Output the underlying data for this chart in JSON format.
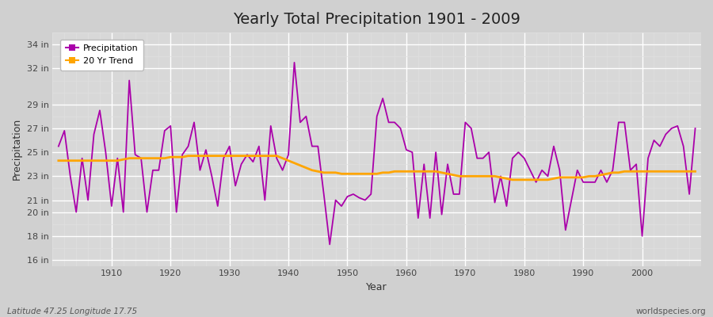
{
  "title": "Yearly Total Precipitation 1901 - 2009",
  "xlabel": "Year",
  "ylabel": "Precipitation",
  "subtitle_left": "Latitude 47.25 Longitude 17.75",
  "subtitle_right": "worldspecies.org",
  "years": [
    1901,
    1902,
    1903,
    1904,
    1905,
    1906,
    1907,
    1908,
    1909,
    1910,
    1911,
    1912,
    1913,
    1914,
    1915,
    1916,
    1917,
    1918,
    1919,
    1920,
    1921,
    1922,
    1923,
    1924,
    1925,
    1926,
    1927,
    1928,
    1929,
    1930,
    1931,
    1932,
    1933,
    1934,
    1935,
    1936,
    1937,
    1938,
    1939,
    1940,
    1941,
    1942,
    1943,
    1944,
    1945,
    1946,
    1947,
    1948,
    1949,
    1950,
    1951,
    1952,
    1953,
    1954,
    1955,
    1956,
    1957,
    1958,
    1959,
    1960,
    1961,
    1962,
    1963,
    1964,
    1965,
    1966,
    1967,
    1968,
    1969,
    1970,
    1971,
    1972,
    1973,
    1974,
    1975,
    1976,
    1977,
    1978,
    1979,
    1980,
    1981,
    1982,
    1983,
    1984,
    1985,
    1986,
    1987,
    1988,
    1989,
    1990,
    1991,
    1992,
    1993,
    1994,
    1995,
    1996,
    1997,
    1998,
    1999,
    2000,
    2001,
    2002,
    2003,
    2004,
    2005,
    2006,
    2007,
    2008,
    2009
  ],
  "precip": [
    25.5,
    26.8,
    23.0,
    20.0,
    24.5,
    21.0,
    26.5,
    28.5,
    25.0,
    20.5,
    24.5,
    20.0,
    31.0,
    24.8,
    24.5,
    20.0,
    23.5,
    23.5,
    26.8,
    27.2,
    20.0,
    24.8,
    25.5,
    27.5,
    23.5,
    25.2,
    23.0,
    20.5,
    24.5,
    25.5,
    22.2,
    24.0,
    24.8,
    24.2,
    25.5,
    21.0,
    27.2,
    24.5,
    23.5,
    24.8,
    32.5,
    27.5,
    28.0,
    25.5,
    25.5,
    21.5,
    17.3,
    21.0,
    20.5,
    21.3,
    21.5,
    21.2,
    21.0,
    21.5,
    28.0,
    29.5,
    27.5,
    27.5,
    27.0,
    25.2,
    25.0,
    19.5,
    24.0,
    19.5,
    25.0,
    19.8,
    24.0,
    21.5,
    21.5,
    27.5,
    27.0,
    24.5,
    24.5,
    25.0,
    20.8,
    23.0,
    20.5,
    24.5,
    25.0,
    24.5,
    23.5,
    22.5,
    23.5,
    23.0,
    25.5,
    23.5,
    18.5,
    21.0,
    23.5,
    22.5,
    22.5,
    22.5,
    23.5,
    22.5,
    23.5,
    27.5,
    27.5,
    23.5,
    24.0,
    18.0,
    24.5,
    26.0,
    25.5,
    26.5,
    27.0,
    27.2,
    25.5,
    21.5,
    27.0
  ],
  "trend": [
    24.3,
    24.3,
    24.3,
    24.3,
    24.3,
    24.3,
    24.3,
    24.3,
    24.3,
    24.3,
    24.3,
    24.4,
    24.5,
    24.5,
    24.5,
    24.5,
    24.5,
    24.5,
    24.5,
    24.6,
    24.6,
    24.6,
    24.7,
    24.7,
    24.7,
    24.7,
    24.7,
    24.7,
    24.7,
    24.7,
    24.7,
    24.7,
    24.7,
    24.7,
    24.7,
    24.7,
    24.7,
    24.7,
    24.5,
    24.3,
    24.1,
    23.9,
    23.7,
    23.5,
    23.4,
    23.3,
    23.3,
    23.3,
    23.2,
    23.2,
    23.2,
    23.2,
    23.2,
    23.2,
    23.2,
    23.3,
    23.3,
    23.4,
    23.4,
    23.4,
    23.4,
    23.4,
    23.4,
    23.4,
    23.4,
    23.3,
    23.2,
    23.1,
    23.0,
    23.0,
    23.0,
    23.0,
    23.0,
    23.0,
    23.0,
    22.9,
    22.8,
    22.7,
    22.7,
    22.7,
    22.7,
    22.7,
    22.7,
    22.7,
    22.8,
    22.9,
    22.9,
    22.9,
    22.9,
    22.9,
    23.0,
    23.0,
    23.1,
    23.2,
    23.3,
    23.3,
    23.4,
    23.4,
    23.4,
    23.4,
    23.4,
    23.4,
    23.4,
    23.4,
    23.4,
    23.4,
    23.4,
    23.4,
    23.4
  ],
  "precip_color": "#aa00aa",
  "trend_color": "#FFA500",
  "fig_background": "#d0d0d0",
  "plot_background": "#d8d8d8",
  "grid_color_major": "#ffffff",
  "grid_color_minor": "#e0e0e0",
  "yticks": [
    16,
    18,
    20,
    21,
    23,
    25,
    27,
    29,
    32,
    34
  ],
  "xticks": [
    1910,
    1920,
    1930,
    1940,
    1950,
    1960,
    1970,
    1980,
    1990,
    2000
  ],
  "ylim": [
    15.5,
    35.0
  ],
  "xlim": [
    1900,
    2010
  ],
  "title_fontsize": 14,
  "tick_fontsize": 8,
  "label_fontsize": 9,
  "legend_fontsize": 8
}
